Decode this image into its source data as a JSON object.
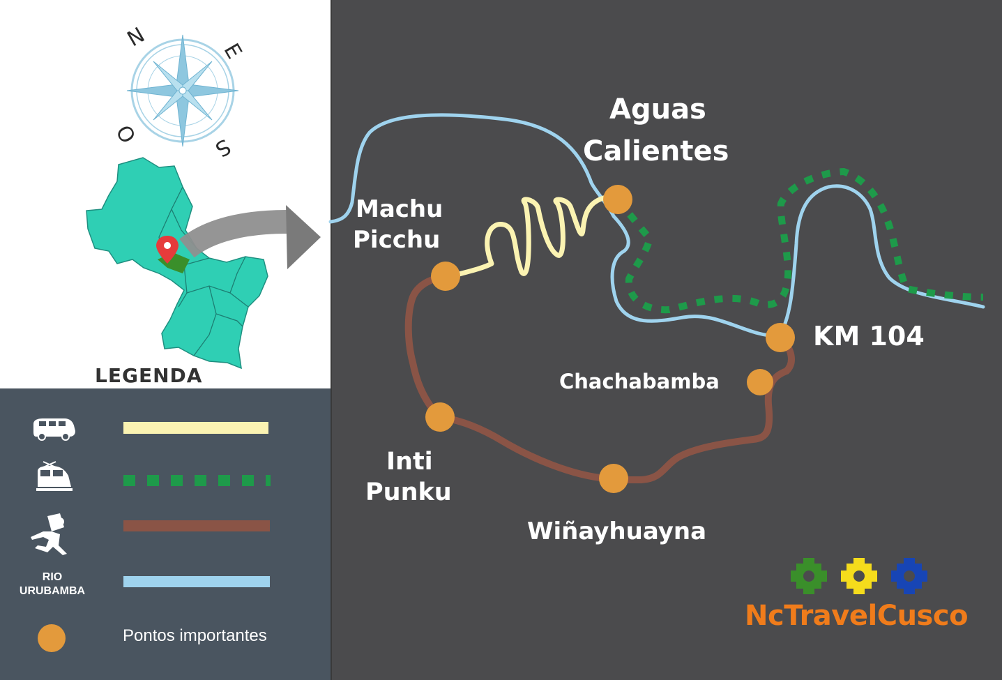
{
  "map": {
    "places": {
      "aguas_calientes_1": "Aguas",
      "aguas_calientes_2": "Calientes",
      "machu_picchu_1": "Machu",
      "machu_picchu_2": "Picchu",
      "km104": "KM 104",
      "chachabamba": "Chachabamba",
      "inti_punku_1": "Inti",
      "inti_punku_2": "Punku",
      "winayhuayna": "Wiñayhuayna"
    },
    "colors": {
      "background": "#4b4b4d",
      "river": "#9fd3ee",
      "van_route": "#fbf3b2",
      "train_route": "#1e9a4a",
      "trek_route": "#8a5446",
      "point": "#e39a3c"
    }
  },
  "compass": {
    "north": "N",
    "east": "E",
    "south": "S",
    "west": "O"
  },
  "legend": {
    "title": "LEGENDA",
    "items": [
      {
        "icon": "van-icon",
        "line": "van-route"
      },
      {
        "icon": "train-icon",
        "line": "train-route"
      },
      {
        "icon": "hiker-icon",
        "line": "trek-route"
      },
      {
        "icon": "river",
        "line": "river"
      }
    ],
    "river_label_1": "RIO",
    "river_label_2": "URUBAMBA",
    "points_label": "Pontos importantes"
  },
  "brand": {
    "name": "NcTravelCusco",
    "colors": [
      "#3a8f2a",
      "#f5dc1c",
      "#1745b5"
    ]
  }
}
